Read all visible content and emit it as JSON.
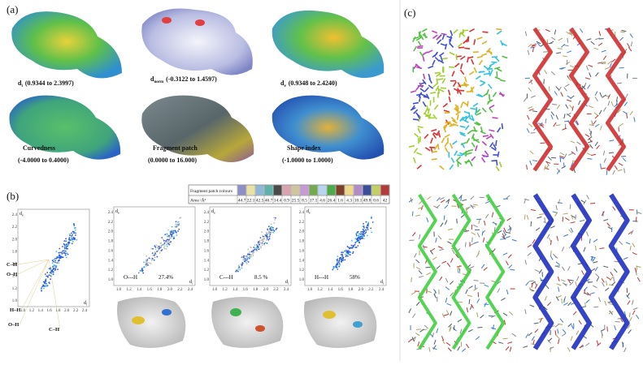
{
  "panel_labels": {
    "a": "(a)",
    "b": "(b)",
    "c": "(c)"
  },
  "surfaces": [
    {
      "symbol": "d",
      "subscript": "i",
      "range": "(0.9344 to 2.3997)"
    },
    {
      "symbol": "d",
      "subscript": "norm",
      "range": "(-0.3122 to 1.4597)"
    },
    {
      "symbol": "d",
      "subscript": "e",
      "range": "(0.9348 to 2.4240)"
    },
    {
      "name": "Curvedness",
      "range": "(-4.0000 to 0.4000)"
    },
    {
      "name": "Fragment patch",
      "range": "(0.0000 to 16.000)"
    },
    {
      "name": "Shape index",
      "range": "(-1.0000 to 1.0000)"
    }
  ],
  "table": {
    "row_labels": [
      "Fragment patch colours",
      "Area /Å²"
    ],
    "areas": [
      "44.7",
      "22.1",
      "42.5",
      "46.7",
      "14.4",
      "0.9",
      "25.5",
      "8.5",
      "17.1",
      "4.6",
      "26.4",
      "1.6",
      "4.3",
      "10.1",
      "49.8",
      "0.6",
      "42"
    ]
  },
  "fingerprint": {
    "x_label": "d",
    "x_sub": "i",
    "y_label": "d",
    "y_sub": "e",
    "yticks": [
      "1.0",
      "1.2",
      "1.4",
      "1.6",
      "1.8",
      "2.0",
      "2.2",
      "2.4"
    ],
    "xticks": [
      "1.0",
      "1.2",
      "1.4",
      "1.6",
      "1.8",
      "2.0",
      "2.2",
      "2.4"
    ],
    "overall_labels": [
      "C–H",
      "O–H",
      "H–H",
      "O–H",
      "C–H"
    ],
    "contacts": [
      {
        "contact": "O---H",
        "percent": "27.4%"
      },
      {
        "contact": "C---H",
        "percent": "8.5 %"
      },
      {
        "contact": "H---H",
        "percent": "58%"
      }
    ]
  }
}
